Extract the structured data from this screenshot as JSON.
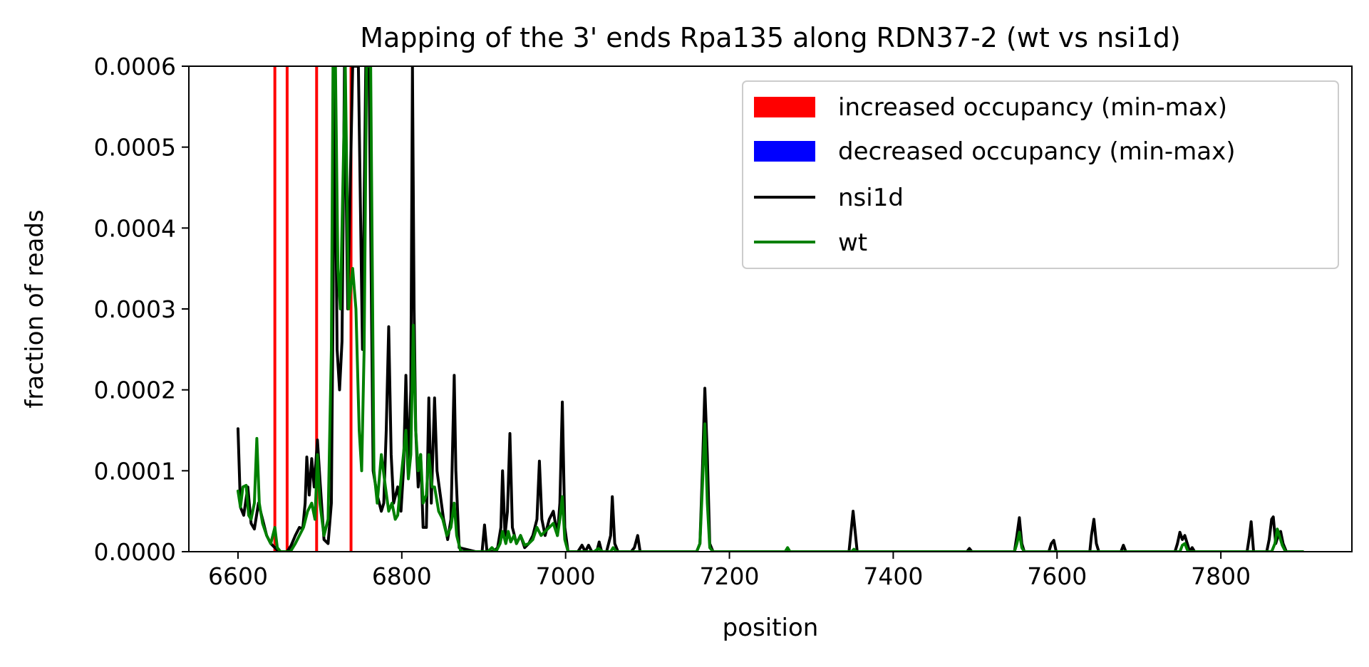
{
  "chart_data": {
    "type": "line",
    "title": "Mapping of the 3' ends Rpa135 along RDN37-2 (wt vs nsi1d)",
    "xlabel": "position",
    "ylabel": "fraction of reads",
    "xlim": [
      6540,
      7960
    ],
    "ylim": [
      0,
      0.0006
    ],
    "x_ticks": [
      6600,
      6800,
      7000,
      7200,
      7400,
      7600,
      7800
    ],
    "x_tick_labels": [
      "6600",
      "6800",
      "7000",
      "7200",
      "7400",
      "7600",
      "7800"
    ],
    "y_ticks": [
      0,
      0.0001,
      0.0002,
      0.0003,
      0.0004,
      0.0005,
      0.0006
    ],
    "y_tick_labels": [
      "0.0000",
      "0.0001",
      "0.0002",
      "0.0003",
      "0.0004",
      "0.0005",
      "0.0006"
    ],
    "grid": false,
    "legend": {
      "placement": "top-right",
      "entries": [
        {
          "label": "increased occupancy (min-max)",
          "kind": "patch",
          "color": "#ff0000"
        },
        {
          "label": "decreased occupancy (min-max)",
          "kind": "patch",
          "color": "#0000ff"
        },
        {
          "label": "nsi1d",
          "kind": "line",
          "color": "#000000"
        },
        {
          "label": "wt",
          "kind": "line",
          "color": "#008000"
        }
      ]
    },
    "increased_occupancy_x": [
      6645,
      6660,
      6696,
      6738
    ],
    "series": [
      {
        "name": "nsi1d",
        "color": "#000000",
        "points": [
          [
            6600,
            0.000152
          ],
          [
            6603,
            5.5e-05
          ],
          [
            6607,
            4.5e-05
          ],
          [
            6612,
            8e-05
          ],
          [
            6616,
            3.5e-05
          ],
          [
            6620,
            2.8e-05
          ],
          [
            6625,
            6e-05
          ],
          [
            6630,
            4e-05
          ],
          [
            6635,
            2e-05
          ],
          [
            6640,
            1e-05
          ],
          [
            6645,
            5e-06
          ],
          [
            6650,
            0.0
          ],
          [
            6660,
            0.0
          ],
          [
            6665,
            8e-06
          ],
          [
            6670,
            2e-05
          ],
          [
            6675,
            3e-05
          ],
          [
            6679,
            2.8e-05
          ],
          [
            6682,
            6e-05
          ],
          [
            6684,
            0.000117
          ],
          [
            6687,
            7e-05
          ],
          [
            6690,
            0.000115
          ],
          [
            6693,
            8e-05
          ],
          [
            6697,
            0.000138
          ],
          [
            6700,
            9e-05
          ],
          [
            6705,
            1.5e-05
          ],
          [
            6710,
            1e-05
          ],
          [
            6714,
            6e-05
          ],
          [
            6716,
            0.0003
          ],
          [
            6718,
            0.0006
          ],
          [
            6721,
            0.00025
          ],
          [
            6724,
            0.0002
          ],
          [
            6727,
            0.00026
          ],
          [
            6730,
            0.0006
          ],
          [
            6734,
            0.0003
          ],
          [
            6740,
            0.0006
          ],
          [
            6747,
            0.0006
          ],
          [
            6752,
            0.00025
          ],
          [
            6756,
            0.0006
          ],
          [
            6760,
            0.0006
          ],
          [
            6765,
            0.0001
          ],
          [
            6770,
            7e-05
          ],
          [
            6775,
            5e-05
          ],
          [
            6778,
            6e-05
          ],
          [
            6781,
            0.00015
          ],
          [
            6784,
            0.000278
          ],
          [
            6787,
            0.00012
          ],
          [
            6790,
            6e-05
          ],
          [
            6795,
            8e-05
          ],
          [
            6799,
            5e-05
          ],
          [
            6802,
            0.0001
          ],
          [
            6805,
            0.000218
          ],
          [
            6808,
            0.0001
          ],
          [
            6811,
            0.0002
          ],
          [
            6813,
            0.0006
          ],
          [
            6815,
            0.0003
          ],
          [
            6817,
            0.00015
          ],
          [
            6820,
            8e-05
          ],
          [
            6823,
            0.00012
          ],
          [
            6826,
            3e-05
          ],
          [
            6830,
            3e-05
          ],
          [
            6833,
            0.00019
          ],
          [
            6836,
            6e-05
          ],
          [
            6840,
            0.00019
          ],
          [
            6843,
            0.0001
          ],
          [
            6847,
            7e-05
          ],
          [
            6851,
            4e-05
          ],
          [
            6856,
            1.5e-05
          ],
          [
            6860,
            4e-05
          ],
          [
            6864,
            0.000218
          ],
          [
            6866,
            0.0001
          ],
          [
            6870,
            5e-06
          ],
          [
            6890,
            0.0
          ],
          [
            6898,
            0.0
          ],
          [
            6901,
            3.3e-05
          ],
          [
            6904,
            0.0
          ],
          [
            6912,
            0.0
          ],
          [
            6917,
            5e-06
          ],
          [
            6921,
            3e-05
          ],
          [
            6923,
            0.0001
          ],
          [
            6926,
            2e-05
          ],
          [
            6929,
            5e-05
          ],
          [
            6932,
            0.000146
          ],
          [
            6935,
            3e-05
          ],
          [
            6940,
            1e-05
          ],
          [
            6945,
            2e-05
          ],
          [
            6950,
            5e-06
          ],
          [
            6955,
            1e-05
          ],
          [
            6960,
            2e-05
          ],
          [
            6965,
            4e-05
          ],
          [
            6968,
            0.000112
          ],
          [
            6971,
            4e-05
          ],
          [
            6975,
            2e-05
          ],
          [
            6980,
            4e-05
          ],
          [
            6985,
            5e-05
          ],
          [
            6990,
            2e-05
          ],
          [
            6993,
            6e-05
          ],
          [
            6996,
            0.000185
          ],
          [
            6999,
            3e-05
          ],
          [
            7003,
            0.0
          ],
          [
            7015,
            0.0
          ],
          [
            7020,
            8e-06
          ],
          [
            7024,
            0.0
          ],
          [
            7028,
            8e-06
          ],
          [
            7032,
            0.0
          ],
          [
            7038,
            0.0
          ],
          [
            7041,
            1.2e-05
          ],
          [
            7044,
            0.0
          ],
          [
            7050,
            0.0
          ],
          [
            7055,
            2e-05
          ],
          [
            7057,
            6.8e-05
          ],
          [
            7060,
            1e-05
          ],
          [
            7064,
            0.0
          ],
          [
            7080,
            0.0
          ],
          [
            7084,
            5e-06
          ],
          [
            7088,
            2e-05
          ],
          [
            7091,
            0.0
          ],
          [
            7160,
            0.0
          ],
          [
            7164,
            1e-05
          ],
          [
            7167,
            0.0001
          ],
          [
            7170,
            0.000202
          ],
          [
            7173,
            0.00012
          ],
          [
            7176,
            1e-05
          ],
          [
            7180,
            0.0
          ],
          [
            7346,
            0.0
          ],
          [
            7349,
            3e-05
          ],
          [
            7351,
            5e-05
          ],
          [
            7353,
            3e-05
          ],
          [
            7356,
            0.0
          ],
          [
            7490,
            0.0
          ],
          [
            7493,
            4e-06
          ],
          [
            7496,
            0.0
          ],
          [
            7548,
            0.0
          ],
          [
            7551,
            2e-05
          ],
          [
            7554,
            4.2e-05
          ],
          [
            7557,
            1e-05
          ],
          [
            7560,
            0.0
          ],
          [
            7590,
            0.0
          ],
          [
            7593,
            1e-05
          ],
          [
            7596,
            1.4e-05
          ],
          [
            7599,
            0.0
          ],
          [
            7640,
            0.0
          ],
          [
            7642,
            2e-05
          ],
          [
            7645,
            4e-05
          ],
          [
            7648,
            1e-05
          ],
          [
            7651,
            0.0
          ],
          [
            7678,
            0.0
          ],
          [
            7681,
            8e-06
          ],
          [
            7684,
            0.0
          ],
          [
            7744,
            0.0
          ],
          [
            7747,
            1e-05
          ],
          [
            7750,
            2.4e-05
          ],
          [
            7753,
            1.5e-05
          ],
          [
            7756,
            2e-05
          ],
          [
            7759,
            1e-05
          ],
          [
            7762,
            0.0
          ],
          [
            7765,
            5e-06
          ],
          [
            7768,
            0.0
          ],
          [
            7832,
            0.0
          ],
          [
            7835,
            2e-05
          ],
          [
            7837,
            3.7e-05
          ],
          [
            7840,
            0.0
          ],
          [
            7856,
            0.0
          ],
          [
            7859,
            1.5e-05
          ],
          [
            7862,
            4e-05
          ],
          [
            7864,
            4.3e-05
          ],
          [
            7867,
            1e-05
          ],
          [
            7870,
            2e-05
          ],
          [
            7873,
            2.5e-05
          ],
          [
            7876,
            1e-05
          ],
          [
            7880,
            0.0
          ],
          [
            7900,
            0.0
          ]
        ]
      },
      {
        "name": "wt",
        "color": "#008000",
        "points": [
          [
            6600,
            7.5e-05
          ],
          [
            6603,
            5.5e-05
          ],
          [
            6606,
            8e-05
          ],
          [
            6610,
            8.2e-05
          ],
          [
            6613,
            4.5e-05
          ],
          [
            6616,
            4e-05
          ],
          [
            6620,
            6e-05
          ],
          [
            6623,
            0.00014
          ],
          [
            6626,
            6e-05
          ],
          [
            6630,
            3.5e-05
          ],
          [
            6635,
            2e-05
          ],
          [
            6640,
            1e-05
          ],
          [
            6645,
            3e-05
          ],
          [
            6648,
            5e-06
          ],
          [
            6652,
            0.0
          ],
          [
            6664,
            0.0
          ],
          [
            6670,
            1e-05
          ],
          [
            6675,
            2e-05
          ],
          [
            6680,
            3e-05
          ],
          [
            6685,
            5e-05
          ],
          [
            6690,
            6e-05
          ],
          [
            6694,
            4e-05
          ],
          [
            6697,
            0.00012
          ],
          [
            6700,
            6e-05
          ],
          [
            6705,
            2e-05
          ],
          [
            6710,
            4e-05
          ],
          [
            6714,
            0.00025
          ],
          [
            6716,
            0.0006
          ],
          [
            6719,
            0.0006
          ],
          [
            6722,
            0.00035
          ],
          [
            6725,
            0.0003
          ],
          [
            6728,
            0.00045
          ],
          [
            6731,
            0.0006
          ],
          [
            6735,
            0.0003
          ],
          [
            6740,
            0.00035
          ],
          [
            6744,
            0.0003
          ],
          [
            6748,
            0.00015
          ],
          [
            6751,
            0.0001
          ],
          [
            6754,
            0.00025
          ],
          [
            6757,
            0.0006
          ],
          [
            6762,
            0.0006
          ],
          [
            6766,
            0.0001
          ],
          [
            6770,
            6e-05
          ],
          [
            6775,
            0.00012
          ],
          [
            6780,
            8e-05
          ],
          [
            6784,
            5e-05
          ],
          [
            6788,
            6e-05
          ],
          [
            6792,
            4e-05
          ],
          [
            6795,
            4.5e-05
          ],
          [
            6800,
            0.0001
          ],
          [
            6805,
            0.00015
          ],
          [
            6808,
            9e-05
          ],
          [
            6811,
            0.00012
          ],
          [
            6814,
            0.00028
          ],
          [
            6817,
            0.00015
          ],
          [
            6820,
            0.0001
          ],
          [
            6823,
            0.00012
          ],
          [
            6826,
            6e-05
          ],
          [
            6830,
            7e-05
          ],
          [
            6833,
            0.00012
          ],
          [
            6837,
            8e-05
          ],
          [
            6840,
            8e-05
          ],
          [
            6845,
            5e-05
          ],
          [
            6850,
            4e-05
          ],
          [
            6855,
            2e-05
          ],
          [
            6860,
            3e-05
          ],
          [
            6864,
            6e-05
          ],
          [
            6867,
            2e-05
          ],
          [
            6872,
            0.0
          ],
          [
            6905,
            0.0
          ],
          [
            6910,
            5e-06
          ],
          [
            6915,
            0.0
          ],
          [
            6920,
            1e-05
          ],
          [
            6923,
            2.5e-05
          ],
          [
            6927,
            1e-05
          ],
          [
            6930,
            2.5e-05
          ],
          [
            6933,
            1.2e-05
          ],
          [
            6937,
            2e-05
          ],
          [
            6940,
            1e-05
          ],
          [
            6945,
            2e-05
          ],
          [
            6950,
            8e-06
          ],
          [
            6955,
            1e-05
          ],
          [
            6960,
            1.5e-05
          ],
          [
            6965,
            3e-05
          ],
          [
            6970,
            2e-05
          ],
          [
            6975,
            2.5e-05
          ],
          [
            6980,
            3e-05
          ],
          [
            6985,
            3.5e-05
          ],
          [
            6990,
            2e-05
          ],
          [
            6993,
            4e-05
          ],
          [
            6996,
            6.8e-05
          ],
          [
            6999,
            1.5e-05
          ],
          [
            7003,
            0.0
          ],
          [
            7035,
            0.0
          ],
          [
            7040,
            4e-06
          ],
          [
            7045,
            0.0
          ],
          [
            7055,
            0.0
          ],
          [
            7058,
            5e-06
          ],
          [
            7062,
            0.0
          ],
          [
            7160,
            0.0
          ],
          [
            7164,
            1e-05
          ],
          [
            7167,
            8e-05
          ],
          [
            7170,
            0.000158
          ],
          [
            7173,
            6e-05
          ],
          [
            7176,
            5e-06
          ],
          [
            7180,
            0.0
          ],
          [
            7268,
            0.0
          ],
          [
            7271,
            5e-06
          ],
          [
            7274,
            0.0
          ],
          [
            7349,
            0.0
          ],
          [
            7352,
            3e-06
          ],
          [
            7355,
            0.0
          ],
          [
            7548,
            0.0
          ],
          [
            7551,
            1e-05
          ],
          [
            7554,
            2.4e-05
          ],
          [
            7557,
            5e-06
          ],
          [
            7560,
            0.0
          ],
          [
            7750,
            0.0
          ],
          [
            7753,
            8e-06
          ],
          [
            7756,
            1e-05
          ],
          [
            7760,
            0.0
          ],
          [
            7862,
            0.0
          ],
          [
            7866,
            1e-05
          ],
          [
            7869,
            2.8e-05
          ],
          [
            7872,
            1.8e-05
          ],
          [
            7875,
            8e-06
          ],
          [
            7879,
            0.0
          ],
          [
            7900,
            0.0
          ]
        ]
      }
    ]
  }
}
